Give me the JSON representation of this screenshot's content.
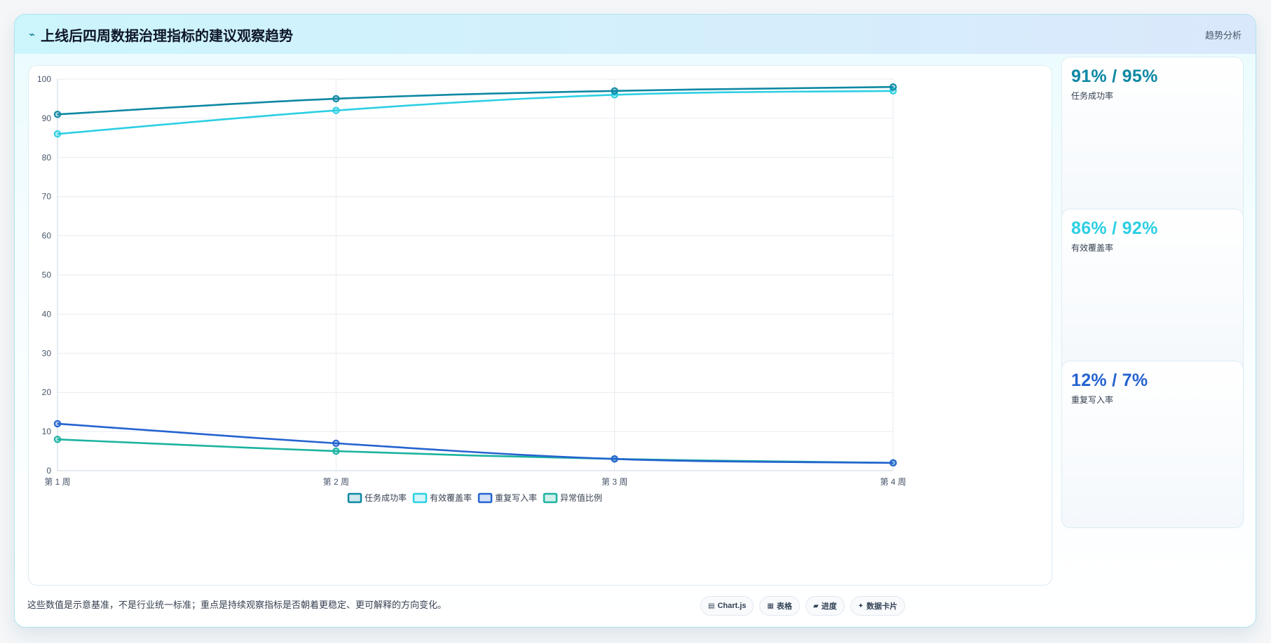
{
  "header": {
    "icon": "trend-line-icon",
    "title": "上线后四周数据治理指标的建议观察趋势",
    "badge": "趋势分析"
  },
  "chart_data": {
    "type": "line",
    "title": "",
    "xlabel": "",
    "ylabel": "",
    "categories": [
      "第 1 周",
      "第 2 周",
      "第 3 周",
      "第 4 周"
    ],
    "ylim": [
      0,
      100
    ],
    "yticks": [
      "0",
      "10",
      "20",
      "30",
      "40",
      "50",
      "60",
      "70",
      "80",
      "90",
      "100"
    ],
    "grid": true,
    "legend_position": "bottom",
    "series": [
      {
        "name": "任务成功率",
        "values": [
          91,
          95,
          97,
          98
        ],
        "color": "#0e88a3"
      },
      {
        "name": "有效覆盖率",
        "values": [
          86,
          92,
          96,
          97
        ],
        "color": "#2ccfe3"
      },
      {
        "name": "重复写入率",
        "values": [
          12,
          7,
          3,
          2
        ],
        "color": "#2563d0"
      },
      {
        "name": "异常值比例",
        "values": [
          8,
          5,
          3,
          2
        ],
        "color": "#1bb3a0"
      }
    ]
  },
  "kpis": [
    {
      "value": "91% / 95%",
      "label": "任务成功率",
      "color": "#0e88a3"
    },
    {
      "value": "86% / 92%",
      "label": "有效覆盖率",
      "color": "#2ccfe3"
    },
    {
      "value": "12% / 7%",
      "label": "重复写入率",
      "color": "#2563d0"
    }
  ],
  "footer": {
    "note": "这些数值是示意基准，不是行业统一标准；重点是持续观察指标是否朝着更稳定、更可解释的方向变化。",
    "chips": [
      {
        "icon": "chart-icon",
        "glyph": "▤",
        "label": "Chart.js"
      },
      {
        "icon": "table-icon",
        "glyph": "▦",
        "label": "表格"
      },
      {
        "icon": "progress-icon",
        "glyph": "▰",
        "label": "进度"
      },
      {
        "icon": "sparkle-icon",
        "glyph": "✦",
        "label": "数据卡片"
      }
    ]
  }
}
